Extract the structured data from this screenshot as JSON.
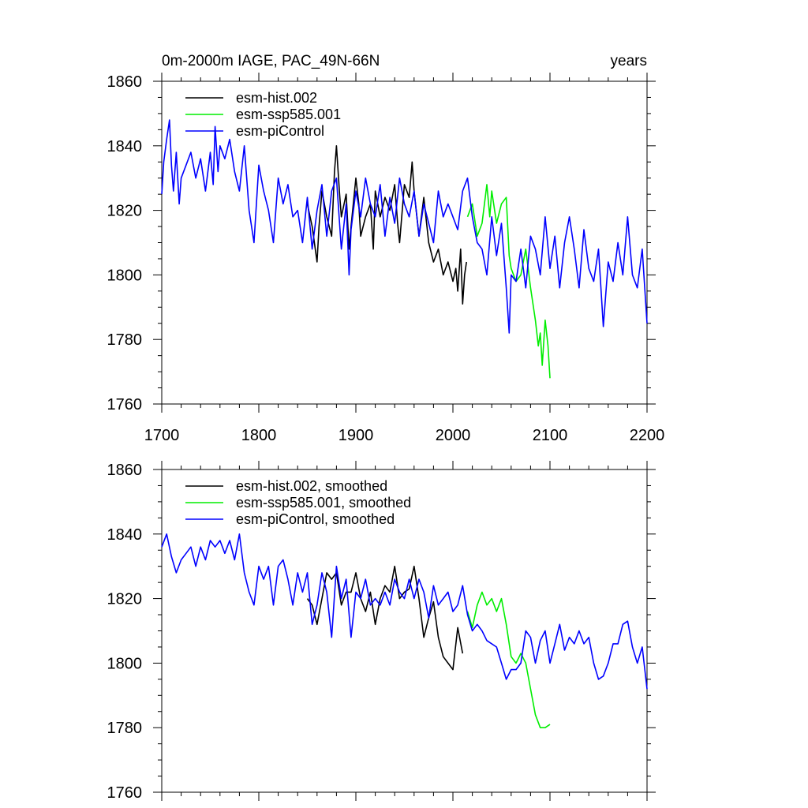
{
  "chart_data": [
    {
      "type": "line",
      "title": "0m-2000m IAGE, PAC_49N-66N",
      "right_title": "years",
      "xlabel": "",
      "ylabel": "",
      "xlim": [
        1700,
        2200
      ],
      "ylim": [
        1760,
        1860
      ],
      "xticks": [
        "1700",
        "1800",
        "1900",
        "2000",
        "2100",
        "2200"
      ],
      "yticks": [
        "1760",
        "1780",
        "1800",
        "1820",
        "1840",
        "1860"
      ],
      "legend_position": "top-left",
      "series": [
        {
          "name": "esm-hist.002",
          "color": "#000000",
          "x": [
            1850,
            1855,
            1860,
            1862,
            1865,
            1870,
            1875,
            1878,
            1880,
            1883,
            1885,
            1890,
            1893,
            1895,
            1900,
            1903,
            1905,
            1910,
            1915,
            1918,
            1920,
            1925,
            1930,
            1935,
            1940,
            1943,
            1945,
            1950,
            1955,
            1958,
            1960,
            1965,
            1970,
            1975,
            1980,
            1985,
            1990,
            1995,
            2000,
            2003,
            2005,
            2008,
            2010,
            2012,
            2014
          ],
          "y": [
            1822,
            1815,
            1804,
            1815,
            1826,
            1818,
            1812,
            1832,
            1840,
            1826,
            1818,
            1825,
            1808,
            1815,
            1830,
            1822,
            1812,
            1818,
            1822,
            1808,
            1826,
            1818,
            1824,
            1820,
            1828,
            1816,
            1810,
            1828,
            1824,
            1835,
            1826,
            1812,
            1824,
            1810,
            1804,
            1808,
            1800,
            1804,
            1798,
            1802,
            1795,
            1808,
            1791,
            1800,
            1804
          ]
        },
        {
          "name": "esm-ssp585.001",
          "color": "#00ee00",
          "x": [
            2015,
            2020,
            2025,
            2030,
            2035,
            2038,
            2040,
            2045,
            2050,
            2055,
            2058,
            2060,
            2065,
            2070,
            2075,
            2080,
            2085,
            2088,
            2090,
            2092,
            2095,
            2098,
            2100
          ],
          "y": [
            1818,
            1822,
            1812,
            1816,
            1828,
            1818,
            1826,
            1816,
            1822,
            1824,
            1806,
            1802,
            1798,
            1800,
            1808,
            1796,
            1786,
            1778,
            1782,
            1772,
            1786,
            1778,
            1768
          ]
        },
        {
          "name": "esm-piControl",
          "color": "#0000ff",
          "x": [
            1700,
            1702,
            1705,
            1708,
            1710,
            1712,
            1715,
            1718,
            1720,
            1725,
            1730,
            1735,
            1740,
            1745,
            1750,
            1753,
            1755,
            1758,
            1760,
            1765,
            1770,
            1775,
            1780,
            1785,
            1790,
            1795,
            1800,
            1805,
            1810,
            1815,
            1820,
            1825,
            1830,
            1835,
            1840,
            1845,
            1850,
            1855,
            1860,
            1865,
            1870,
            1875,
            1880,
            1885,
            1890,
            1893,
            1895,
            1900,
            1905,
            1910,
            1915,
            1920,
            1925,
            1930,
            1935,
            1940,
            1945,
            1950,
            1955,
            1960,
            1965,
            1970,
            1975,
            1980,
            1985,
            1990,
            1995,
            2000,
            2005,
            2010,
            2015,
            2020,
            2025,
            2030,
            2035,
            2040,
            2045,
            2050,
            2055,
            2058,
            2060,
            2065,
            2070,
            2075,
            2080,
            2085,
            2090,
            2095,
            2100,
            2105,
            2110,
            2115,
            2120,
            2125,
            2130,
            2135,
            2140,
            2145,
            2150,
            2155,
            2160,
            2165,
            2170,
            2175,
            2180,
            2185,
            2190,
            2195,
            2200
          ],
          "y": [
            1825,
            1835,
            1842,
            1848,
            1834,
            1826,
            1838,
            1822,
            1830,
            1834,
            1838,
            1830,
            1836,
            1826,
            1838,
            1828,
            1846,
            1832,
            1840,
            1836,
            1842,
            1832,
            1826,
            1840,
            1820,
            1810,
            1834,
            1826,
            1820,
            1810,
            1830,
            1822,
            1828,
            1818,
            1820,
            1810,
            1824,
            1808,
            1820,
            1828,
            1812,
            1826,
            1830,
            1808,
            1822,
            1800,
            1814,
            1826,
            1818,
            1830,
            1822,
            1818,
            1828,
            1812,
            1824,
            1816,
            1830,
            1822,
            1818,
            1826,
            1812,
            1822,
            1816,
            1810,
            1826,
            1818,
            1822,
            1818,
            1814,
            1826,
            1830,
            1818,
            1810,
            1808,
            1800,
            1818,
            1806,
            1816,
            1796,
            1782,
            1800,
            1798,
            1808,
            1796,
            1812,
            1808,
            1800,
            1818,
            1802,
            1812,
            1796,
            1810,
            1818,
            1808,
            1796,
            1814,
            1802,
            1798,
            1808,
            1784,
            1804,
            1798,
            1810,
            1800,
            1818,
            1800,
            1796,
            1808,
            1785
          ]
        }
      ]
    },
    {
      "type": "line",
      "title": "",
      "xlabel": "",
      "ylabel": "",
      "xlim": [
        1700,
        2200
      ],
      "ylim": [
        1760,
        1860
      ],
      "xticks": [
        "",
        "",
        "",
        "",
        "",
        ""
      ],
      "yticks": [
        "1760",
        "1780",
        "1800",
        "1820",
        "1840",
        "1860"
      ],
      "legend_position": "top-left",
      "series": [
        {
          "name": "esm-hist.002, smoothed",
          "color": "#000000",
          "x": [
            1850,
            1855,
            1860,
            1865,
            1870,
            1875,
            1880,
            1885,
            1890,
            1895,
            1900,
            1905,
            1910,
            1915,
            1920,
            1925,
            1930,
            1935,
            1940,
            1945,
            1950,
            1955,
            1960,
            1965,
            1970,
            1975,
            1980,
            1985,
            1990,
            1995,
            2000,
            2005,
            2010
          ],
          "y": [
            1820,
            1818,
            1812,
            1820,
            1828,
            1826,
            1828,
            1818,
            1822,
            1822,
            1828,
            1820,
            1816,
            1822,
            1812,
            1820,
            1824,
            1822,
            1830,
            1820,
            1822,
            1823,
            1830,
            1820,
            1808,
            1814,
            1819,
            1808,
            1802,
            1800,
            1798,
            1811,
            1803
          ]
        },
        {
          "name": "esm-ssp585.001, smoothed",
          "color": "#00ee00",
          "x": [
            2015,
            2020,
            2025,
            2030,
            2035,
            2040,
            2045,
            2050,
            2055,
            2060,
            2065,
            2070,
            2075,
            2080,
            2085,
            2090,
            2095,
            2100
          ],
          "y": [
            1816,
            1811,
            1818,
            1822,
            1818,
            1820,
            1816,
            1820,
            1812,
            1802,
            1800,
            1803,
            1800,
            1792,
            1784,
            1780,
            1780,
            1781
          ]
        },
        {
          "name": "esm-piControl, smoothed",
          "color": "#0000ff",
          "x": [
            1700,
            1705,
            1710,
            1715,
            1720,
            1725,
            1730,
            1735,
            1740,
            1745,
            1750,
            1755,
            1760,
            1765,
            1770,
            1775,
            1780,
            1785,
            1790,
            1795,
            1800,
            1805,
            1810,
            1815,
            1820,
            1825,
            1830,
            1835,
            1840,
            1845,
            1850,
            1855,
            1860,
            1865,
            1870,
            1875,
            1880,
            1885,
            1890,
            1895,
            1900,
            1905,
            1910,
            1915,
            1920,
            1925,
            1930,
            1935,
            1940,
            1945,
            1950,
            1955,
            1960,
            1965,
            1970,
            1975,
            1980,
            1985,
            1990,
            1995,
            2000,
            2005,
            2010,
            2015,
            2020,
            2025,
            2030,
            2035,
            2040,
            2045,
            2050,
            2055,
            2060,
            2065,
            2070,
            2075,
            2080,
            2085,
            2090,
            2095,
            2100,
            2105,
            2110,
            2115,
            2120,
            2125,
            2130,
            2135,
            2140,
            2145,
            2150,
            2155,
            2160,
            2165,
            2170,
            2175,
            2180,
            2185,
            2190,
            2195,
            2200
          ],
          "y": [
            1836,
            1840,
            1833,
            1828,
            1832,
            1834,
            1836,
            1830,
            1836,
            1832,
            1838,
            1836,
            1838,
            1834,
            1838,
            1832,
            1840,
            1828,
            1822,
            1818,
            1830,
            1826,
            1830,
            1818,
            1830,
            1832,
            1826,
            1818,
            1828,
            1822,
            1828,
            1812,
            1818,
            1828,
            1822,
            1808,
            1830,
            1820,
            1826,
            1808,
            1822,
            1820,
            1826,
            1818,
            1820,
            1818,
            1822,
            1818,
            1826,
            1822,
            1820,
            1826,
            1820,
            1826,
            1822,
            1814,
            1824,
            1818,
            1820,
            1822,
            1816,
            1818,
            1824,
            1815,
            1810,
            1812,
            1810,
            1807,
            1806,
            1805,
            1800,
            1795,
            1798,
            1798,
            1800,
            1810,
            1808,
            1800,
            1807,
            1810,
            1800,
            1806,
            1812,
            1804,
            1808,
            1806,
            1810,
            1806,
            1808,
            1800,
            1795,
            1796,
            1800,
            1806,
            1806,
            1812,
            1813,
            1805,
            1800,
            1805,
            1792
          ]
        }
      ]
    }
  ]
}
